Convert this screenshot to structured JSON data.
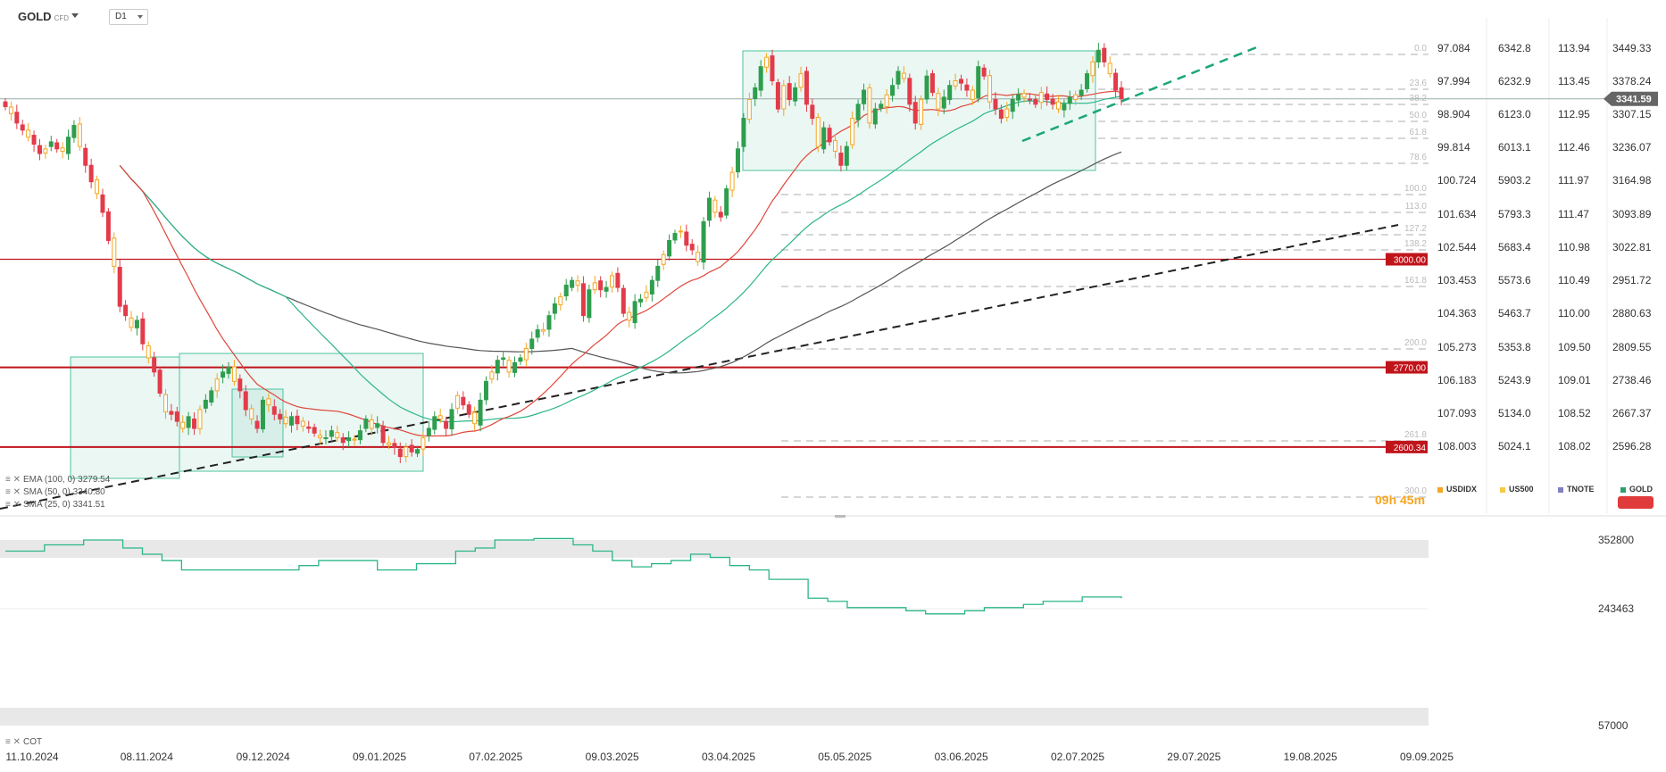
{
  "header": {
    "symbol": "GOLD",
    "symbol_type": "CFD",
    "timeframe": "D1"
  },
  "price_tag": "3341.59",
  "level_tags": [
    "3000.00",
    "2770.00",
    "2600.34"
  ],
  "countdown": "09h 45m",
  "indicators": [
    {
      "icon": "≡ ✕",
      "label": "EMA (100, 0) 3279.54"
    },
    {
      "icon": "≡ ✕",
      "label": "SMA (50, 0) 3340.80"
    },
    {
      "icon": "≡ ✕",
      "label": "SMA (25, 0) 3341.51"
    }
  ],
  "sub_indicator": {
    "icon": "≡ ✕",
    "label": "COT"
  },
  "fib_labels": [
    "0.0",
    "23.6",
    "38.2",
    "50.0",
    "61.8",
    "78.6",
    "100.0",
    "113.0",
    "127.2",
    "138.2",
    "161.8",
    "200.0",
    "261.8",
    "300.0"
  ],
  "columns": [
    {
      "name": "USDIDX",
      "color": "#f5a623",
      "values": [
        "97.084",
        "97.994",
        "98.904",
        "99.814",
        "100.724",
        "101.634",
        "102.544",
        "103.453",
        "104.363",
        "105.273",
        "106.183",
        "107.093",
        "108.003"
      ]
    },
    {
      "name": "US500",
      "color": "#f7c948",
      "values": [
        "6342.8",
        "6232.9",
        "6123.0",
        "6013.1",
        "5903.2",
        "5793.3",
        "5683.4",
        "5573.6",
        "5463.7",
        "5353.8",
        "5243.9",
        "5134.0",
        "5024.1"
      ]
    },
    {
      "name": "TNOTE",
      "color": "#8080c0",
      "values": [
        "113.94",
        "113.45",
        "112.95",
        "112.46",
        "111.97",
        "111.47",
        "110.98",
        "110.49",
        "110.00",
        "109.50",
        "109.01",
        "108.52",
        "108.02"
      ]
    },
    {
      "name": "GOLD",
      "color": "#2e9e6e",
      "values": [
        "3449.33",
        "3378.24",
        "3307.15",
        "3236.07",
        "3164.98",
        "3093.89",
        "3022.81",
        "2951.72",
        "2880.63",
        "2809.55",
        "2738.46",
        "2667.37",
        "2596.28"
      ]
    }
  ],
  "cot_axis": [
    "352800",
    "243463",
    "57000"
  ],
  "x_dates": [
    "11.10.2024",
    "08.11.2024",
    "09.12.2024",
    "09.01.2025",
    "07.02.2025",
    "09.03.2025",
    "03.04.2025",
    "05.05.2025",
    "03.06.2025",
    "02.07.2025",
    "29.07.2025",
    "19.08.2025",
    "09.09.2025"
  ],
  "chart_data": {
    "type": "candlestick",
    "symbol": "GOLD",
    "timeframe": "D1",
    "y_range": [
      2548,
      3510
    ],
    "horizontal_levels": [
      3000.0,
      2770.0,
      2600.34
    ],
    "current_price": 3341.59,
    "ema100_last": 3279.54,
    "sma50_last": 3340.8,
    "sma25_last": 3341.51,
    "candle_count": 196,
    "close_series": [
      3325,
      3310,
      3290,
      3275,
      3260,
      3245,
      3225,
      3235,
      3250,
      3235,
      3230,
      3260,
      3285,
      3240,
      3200,
      3165,
      3140,
      3100,
      3040,
      2985,
      2900,
      2880,
      2855,
      2870,
      2820,
      2790,
      2760,
      2715,
      2675,
      2670,
      2655,
      2640,
      2665,
      2640,
      2680,
      2700,
      2720,
      2745,
      2760,
      2770,
      2740,
      2720,
      2680,
      2660,
      2640,
      2700,
      2690,
      2670,
      2660,
      2650,
      2665,
      2650,
      2645,
      2640,
      2630,
      2620,
      2620,
      2635,
      2620,
      2610,
      2620,
      2615,
      2635,
      2660,
      2640,
      2650,
      2610,
      2605,
      2600,
      2580,
      2600,
      2590,
      2595,
      2620,
      2640,
      2665,
      2660,
      2640,
      2680,
      2710,
      2690,
      2670,
      2650,
      2700,
      2740,
      2760,
      2785,
      2790,
      2760,
      2780,
      2790,
      2810,
      2830,
      2850,
      2850,
      2880,
      2905,
      2920,
      2945,
      2955,
      2945,
      2880,
      2935,
      2950,
      2935,
      2940,
      2965,
      2940,
      2885,
      2870,
      2910,
      2915,
      2930,
      2955,
      2985,
      3010,
      3040,
      3055,
      3060,
      3030,
      3020,
      2995,
      3080,
      3130,
      3100,
      3090,
      3150,
      3185,
      3235,
      3300,
      3340,
      3365,
      3410,
      3430,
      3380,
      3320,
      3370,
      3340,
      3365,
      3395,
      3330,
      3300,
      3240,
      3280,
      3250,
      3230,
      3200,
      3240,
      3300,
      3330,
      3360,
      3290,
      3320,
      3330,
      3350,
      3370,
      3400,
      3385,
      3330,
      3290,
      3340,
      3390,
      3355,
      3320,
      3345,
      3370,
      3380,
      3375,
      3360,
      3340,
      3410,
      3390,
      3335,
      3320,
      3300,
      3320,
      3340,
      3350,
      3345,
      3340,
      3330,
      3355,
      3340,
      3330,
      3320,
      3330,
      3345,
      3350,
      3360,
      3395,
      3420,
      3445,
      3420,
      3395,
      3360,
      3341.59
    ],
    "cot_range": [
      57000,
      352800
    ],
    "cot_series": [
      335000,
      335000,
      345000,
      345000,
      352800,
      352800,
      340000,
      330000,
      320000,
      305000,
      305000,
      305000,
      305000,
      305000,
      305000,
      312000,
      320000,
      320000,
      320000,
      305000,
      305000,
      315000,
      315000,
      335000,
      340000,
      352800,
      352800,
      355000,
      355000,
      345000,
      335000,
      320000,
      310000,
      315000,
      320000,
      330000,
      325000,
      312000,
      305000,
      290000,
      290000,
      260000,
      255000,
      245000,
      245000,
      245000,
      240000,
      235000,
      235000,
      240000,
      245000,
      245000,
      250000,
      255000,
      255000,
      262000,
      262000,
      260000
    ]
  }
}
